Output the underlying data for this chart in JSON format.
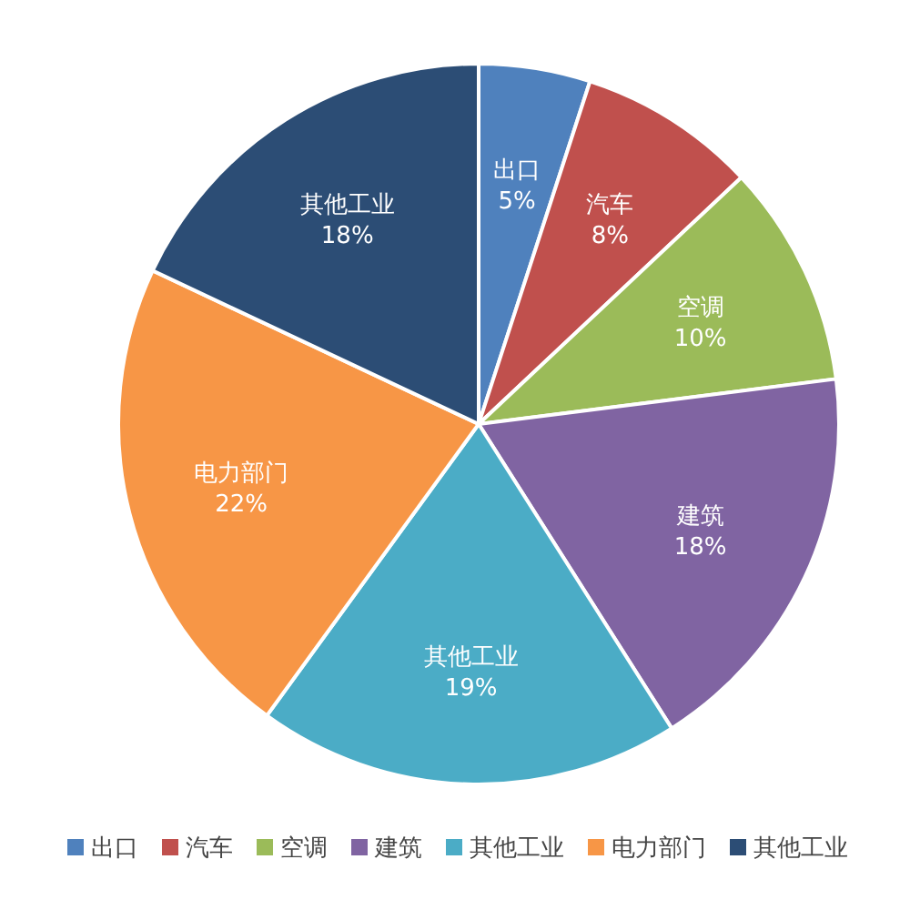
{
  "chart_data": {
    "type": "pie",
    "categories": [
      "出口",
      "汽车",
      "空调",
      "建筑",
      "其他工业",
      "电力部门",
      "其他工业"
    ],
    "values": [
      5,
      8,
      10,
      18,
      19,
      22,
      18
    ],
    "value_labels": [
      "5%",
      "8%",
      "10%",
      "18%",
      "19%",
      "22%",
      "18%"
    ],
    "colors": [
      "#4f81bd",
      "#c0504d",
      "#9bbb59",
      "#8064a2",
      "#4bacc6",
      "#f79646",
      "#2c4d75"
    ],
    "legend": "bottom"
  }
}
